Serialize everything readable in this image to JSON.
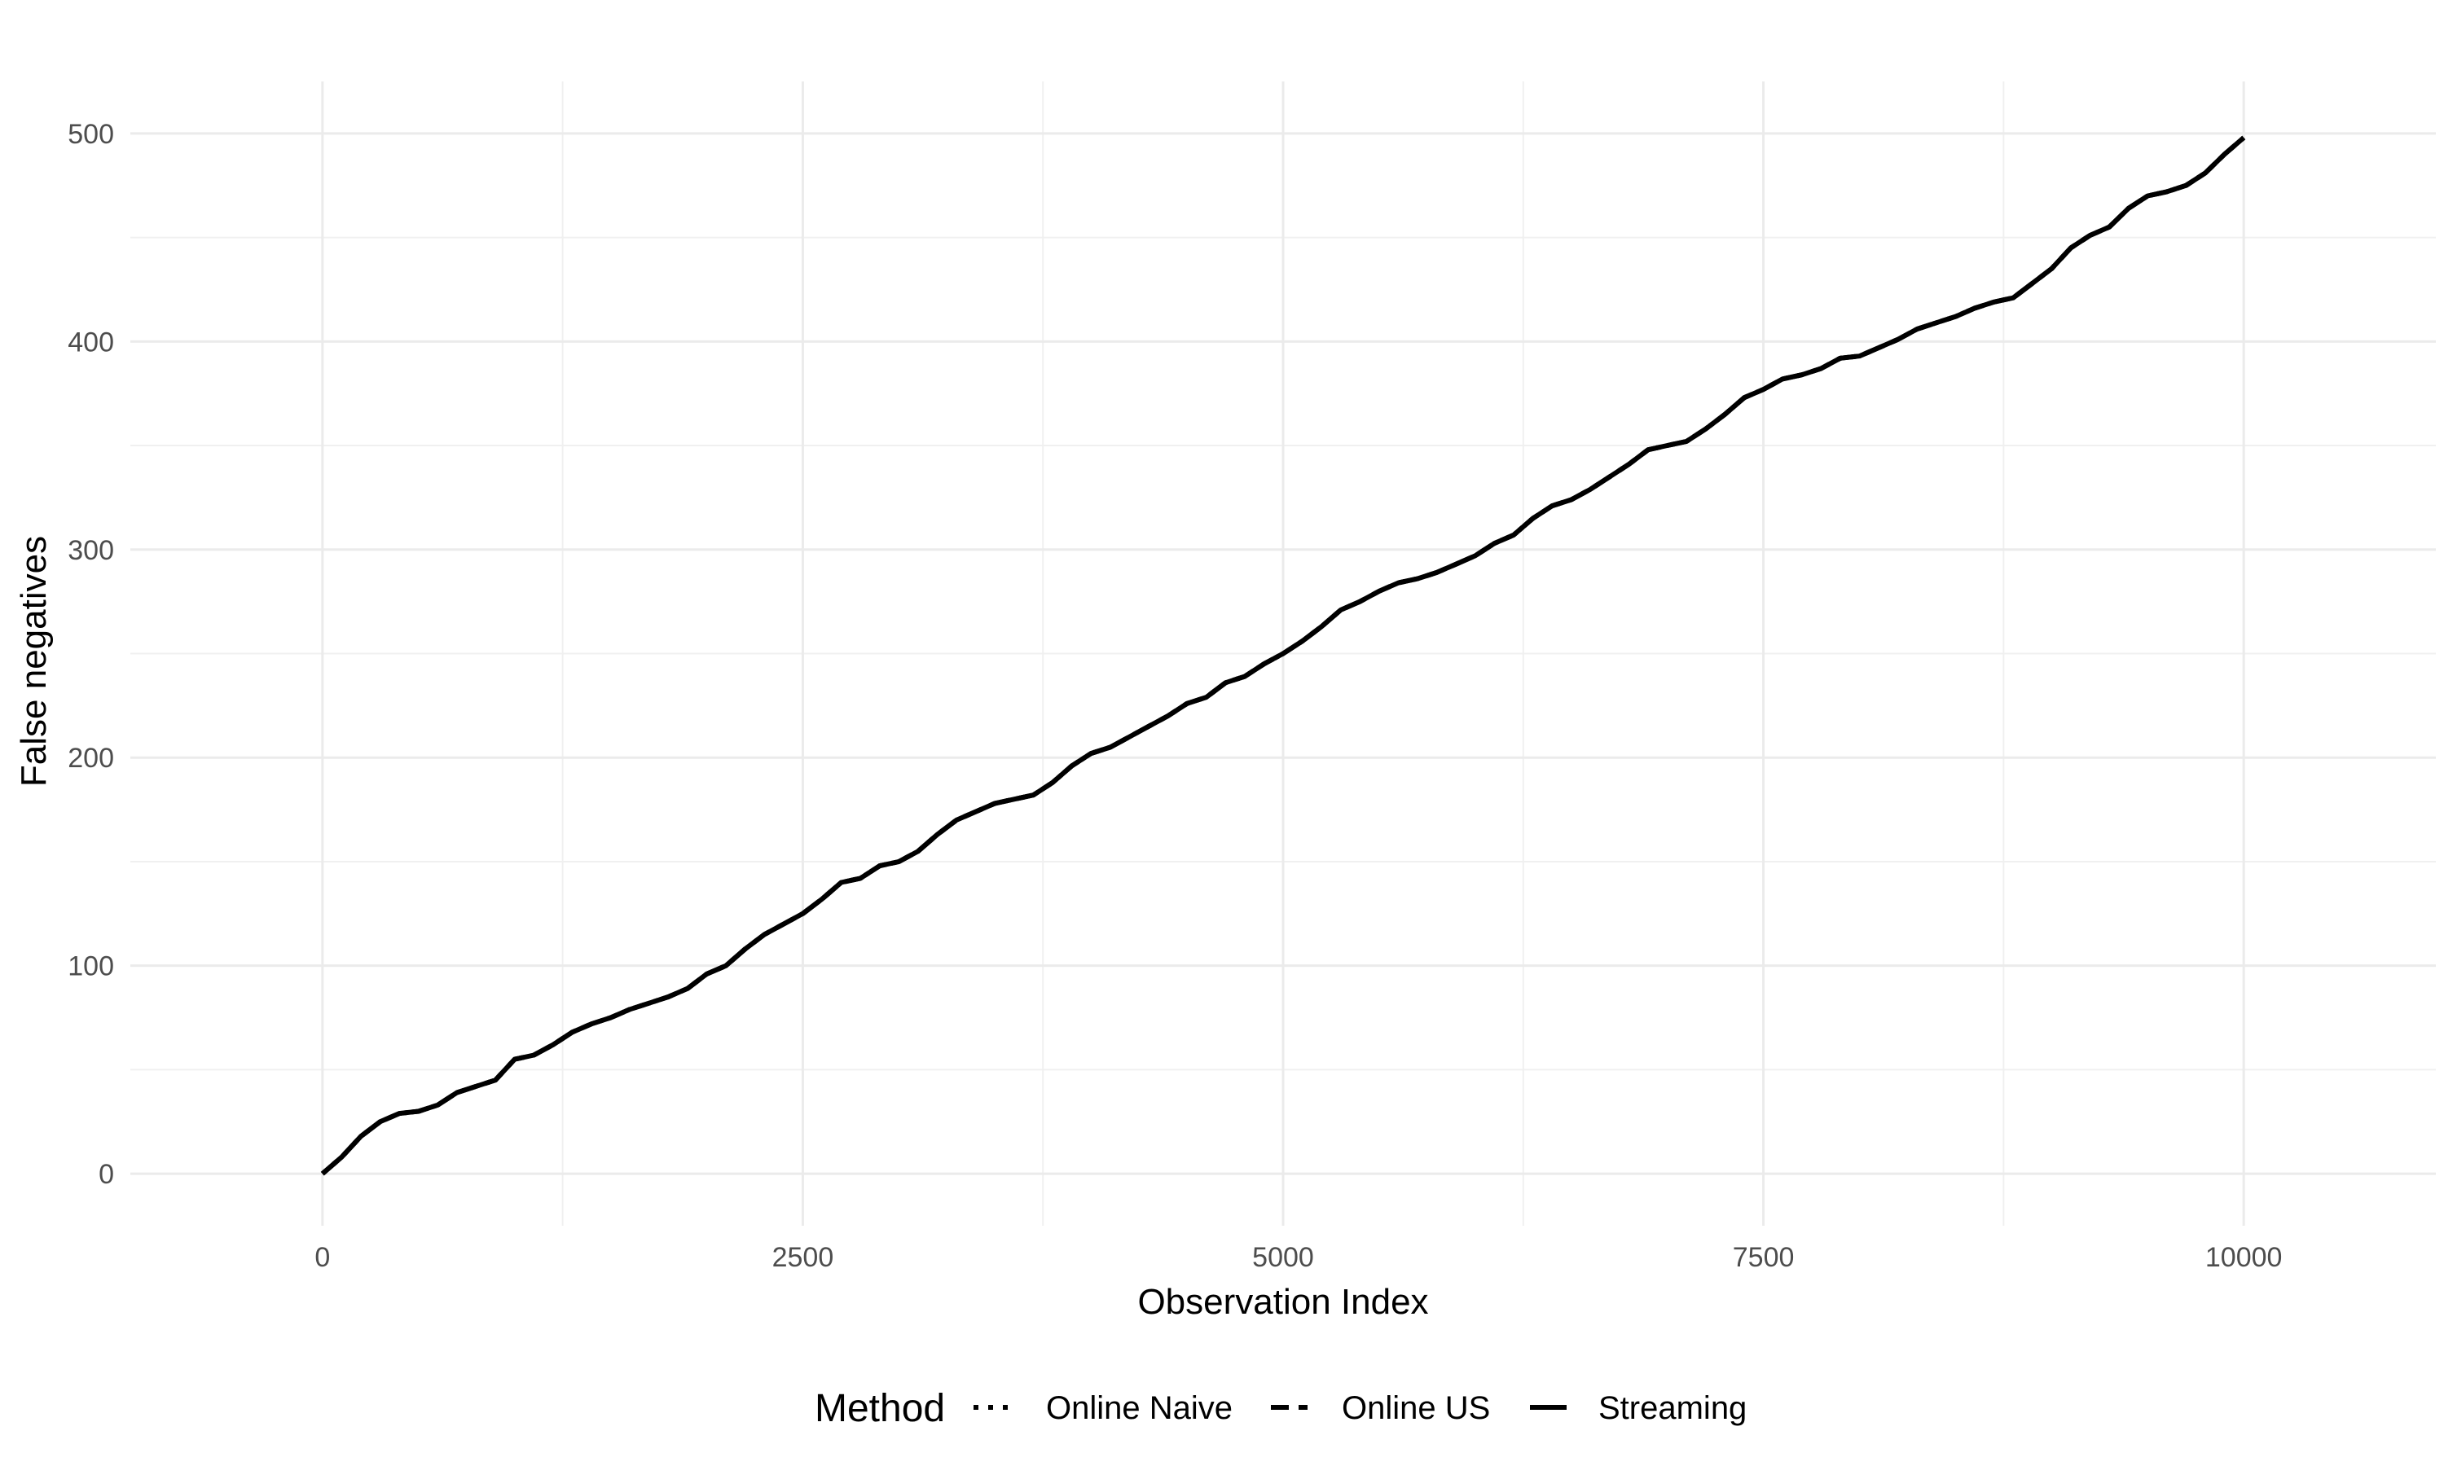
{
  "chart_data": {
    "type": "line",
    "xlabel": "Observation Index",
    "ylabel": "False negatives",
    "xlim": [
      -1000,
      11000
    ],
    "ylim": [
      -25,
      525
    ],
    "x_ticks": [
      0,
      2500,
      5000,
      7500,
      10000
    ],
    "x_tick_labels": [
      "0",
      "2500",
      "5000",
      "7500",
      "10000"
    ],
    "y_ticks": [
      0,
      100,
      200,
      300,
      400,
      500
    ],
    "y_tick_labels": [
      "0",
      "100",
      "200",
      "300",
      "400",
      "500"
    ],
    "grid": true,
    "legend": {
      "title": "Method",
      "placement": "bottom",
      "entries": [
        {
          "label": "Online Naive",
          "linetype": "dotted"
        },
        {
          "label": "Online US",
          "linetype": "dashed"
        },
        {
          "label": "Streaming",
          "linetype": "solid"
        }
      ]
    },
    "series": [
      {
        "name": "Online Naive",
        "linetype": "dotted",
        "color": "#000000",
        "x": [
          0,
          100,
          200,
          300,
          400,
          500,
          600,
          700,
          800,
          900,
          1000,
          1100,
          1200,
          1300,
          1400,
          1500,
          1600,
          1700,
          1800,
          1900,
          2000,
          2100,
          2200,
          2300,
          2400,
          2500,
          2600,
          2700,
          2800,
          2900,
          3000,
          3100,
          3200,
          3300,
          3400,
          3500,
          3600,
          3700,
          3800,
          3900,
          4000,
          4100,
          4200,
          4300,
          4400,
          4500,
          4600,
          4700,
          4800,
          4900,
          5000,
          5100,
          5200,
          5300,
          5400,
          5500,
          5600,
          5700,
          5800,
          5900,
          6000,
          6100,
          6200,
          6300,
          6400,
          6500,
          6600,
          6700,
          6800,
          6900,
          7000,
          7100,
          7200,
          7300,
          7400,
          7500,
          7600,
          7700,
          7800,
          7900,
          8000,
          8100,
          8200,
          8300,
          8400,
          8500,
          8600,
          8700,
          8800,
          8900,
          9000,
          9100,
          9200,
          9300,
          9400,
          9500,
          9600,
          9700,
          9800,
          9900,
          10000
        ],
        "y": [
          0,
          8,
          18,
          25,
          29,
          30,
          33,
          39,
          42,
          45,
          55,
          57,
          62,
          68,
          72,
          75,
          79,
          82,
          85,
          89,
          96,
          100,
          108,
          115,
          120,
          125,
          132,
          140,
          142,
          148,
          150,
          155,
          163,
          170,
          174,
          178,
          180,
          182,
          188,
          196,
          202,
          205,
          210,
          215,
          220,
          226,
          229,
          236,
          239,
          245,
          250,
          256,
          263,
          271,
          275,
          280,
          284,
          286,
          289,
          293,
          297,
          303,
          307,
          315,
          321,
          324,
          329,
          335,
          341,
          348,
          350,
          352,
          358,
          365,
          373,
          377,
          382,
          384,
          387,
          392,
          393,
          397,
          401,
          406,
          409,
          412,
          416,
          419,
          421,
          428,
          435,
          445,
          451,
          455,
          464,
          470,
          472,
          475,
          481,
          490,
          498
        ]
      },
      {
        "name": "Online US",
        "linetype": "dashed",
        "color": "#000000",
        "x": [
          0,
          100,
          200,
          300,
          400,
          500,
          600,
          700,
          800,
          900,
          1000,
          1100,
          1200,
          1300,
          1400,
          1500,
          1600,
          1700,
          1800,
          1900,
          2000,
          2100,
          2200,
          2300,
          2400,
          2500,
          2600,
          2700,
          2800,
          2900,
          3000,
          3100,
          3200,
          3300,
          3400,
          3500,
          3600,
          3700,
          3800,
          3900,
          4000,
          4100,
          4200,
          4300,
          4400,
          4500,
          4600,
          4700,
          4800,
          4900,
          5000,
          5100,
          5200,
          5300,
          5400,
          5500,
          5600,
          5700,
          5800,
          5900,
          6000,
          6100,
          6200,
          6300,
          6400,
          6500,
          6600,
          6700,
          6800,
          6900,
          7000,
          7100,
          7200,
          7300,
          7400,
          7500,
          7600,
          7700,
          7800,
          7900,
          8000,
          8100,
          8200,
          8300,
          8400,
          8500,
          8600,
          8700,
          8800,
          8900,
          9000,
          9100,
          9200,
          9300,
          9400,
          9500,
          9600,
          9700,
          9800,
          9900,
          10000
        ],
        "y": [
          0,
          8,
          18,
          25,
          29,
          30,
          33,
          39,
          42,
          45,
          55,
          57,
          62,
          68,
          72,
          75,
          79,
          82,
          85,
          89,
          96,
          100,
          108,
          115,
          120,
          125,
          132,
          140,
          142,
          148,
          150,
          155,
          163,
          170,
          174,
          178,
          180,
          182,
          188,
          196,
          202,
          205,
          210,
          215,
          220,
          226,
          229,
          236,
          239,
          245,
          250,
          256,
          263,
          271,
          275,
          280,
          284,
          286,
          289,
          293,
          297,
          303,
          307,
          315,
          321,
          324,
          329,
          335,
          341,
          348,
          350,
          352,
          358,
          365,
          373,
          377,
          382,
          384,
          387,
          392,
          393,
          397,
          401,
          406,
          409,
          412,
          416,
          419,
          421,
          428,
          435,
          445,
          451,
          455,
          464,
          470,
          472,
          475,
          481,
          490,
          498
        ]
      },
      {
        "name": "Streaming",
        "linetype": "solid",
        "color": "#000000",
        "x": [
          0,
          100,
          200,
          300,
          400,
          500,
          600,
          700,
          800,
          900,
          1000,
          1100,
          1200,
          1300,
          1400,
          1500,
          1600,
          1700,
          1800,
          1900,
          2000,
          2100,
          2200,
          2300,
          2400,
          2500,
          2600,
          2700,
          2800,
          2900,
          3000,
          3100,
          3200,
          3300,
          3400,
          3500,
          3600,
          3700,
          3800,
          3900,
          4000,
          4100,
          4200,
          4300,
          4400,
          4500,
          4600,
          4700,
          4800,
          4900,
          5000,
          5100,
          5200,
          5300,
          5400,
          5500,
          5600,
          5700,
          5800,
          5900,
          6000,
          6100,
          6200,
          6300,
          6400,
          6500,
          6600,
          6700,
          6800,
          6900,
          7000,
          7100,
          7200,
          7300,
          7400,
          7500,
          7600,
          7700,
          7800,
          7900,
          8000,
          8100,
          8200,
          8300,
          8400,
          8500,
          8600,
          8700,
          8800,
          8900,
          9000,
          9100,
          9200,
          9300,
          9400,
          9500,
          9600,
          9700,
          9800,
          9900,
          10000
        ],
        "y": [
          0,
          8,
          18,
          25,
          29,
          30,
          33,
          39,
          42,
          45,
          55,
          57,
          62,
          68,
          72,
          75,
          79,
          82,
          85,
          89,
          96,
          100,
          108,
          115,
          120,
          125,
          132,
          140,
          142,
          148,
          150,
          155,
          163,
          170,
          174,
          178,
          180,
          182,
          188,
          196,
          202,
          205,
          210,
          215,
          220,
          226,
          229,
          236,
          239,
          245,
          250,
          256,
          263,
          271,
          275,
          280,
          284,
          286,
          289,
          293,
          297,
          303,
          307,
          315,
          321,
          324,
          329,
          335,
          341,
          348,
          350,
          352,
          358,
          365,
          373,
          377,
          382,
          384,
          387,
          392,
          393,
          397,
          401,
          406,
          409,
          412,
          416,
          419,
          421,
          428,
          435,
          445,
          451,
          455,
          464,
          470,
          472,
          475,
          481,
          490,
          498
        ]
      }
    ]
  }
}
